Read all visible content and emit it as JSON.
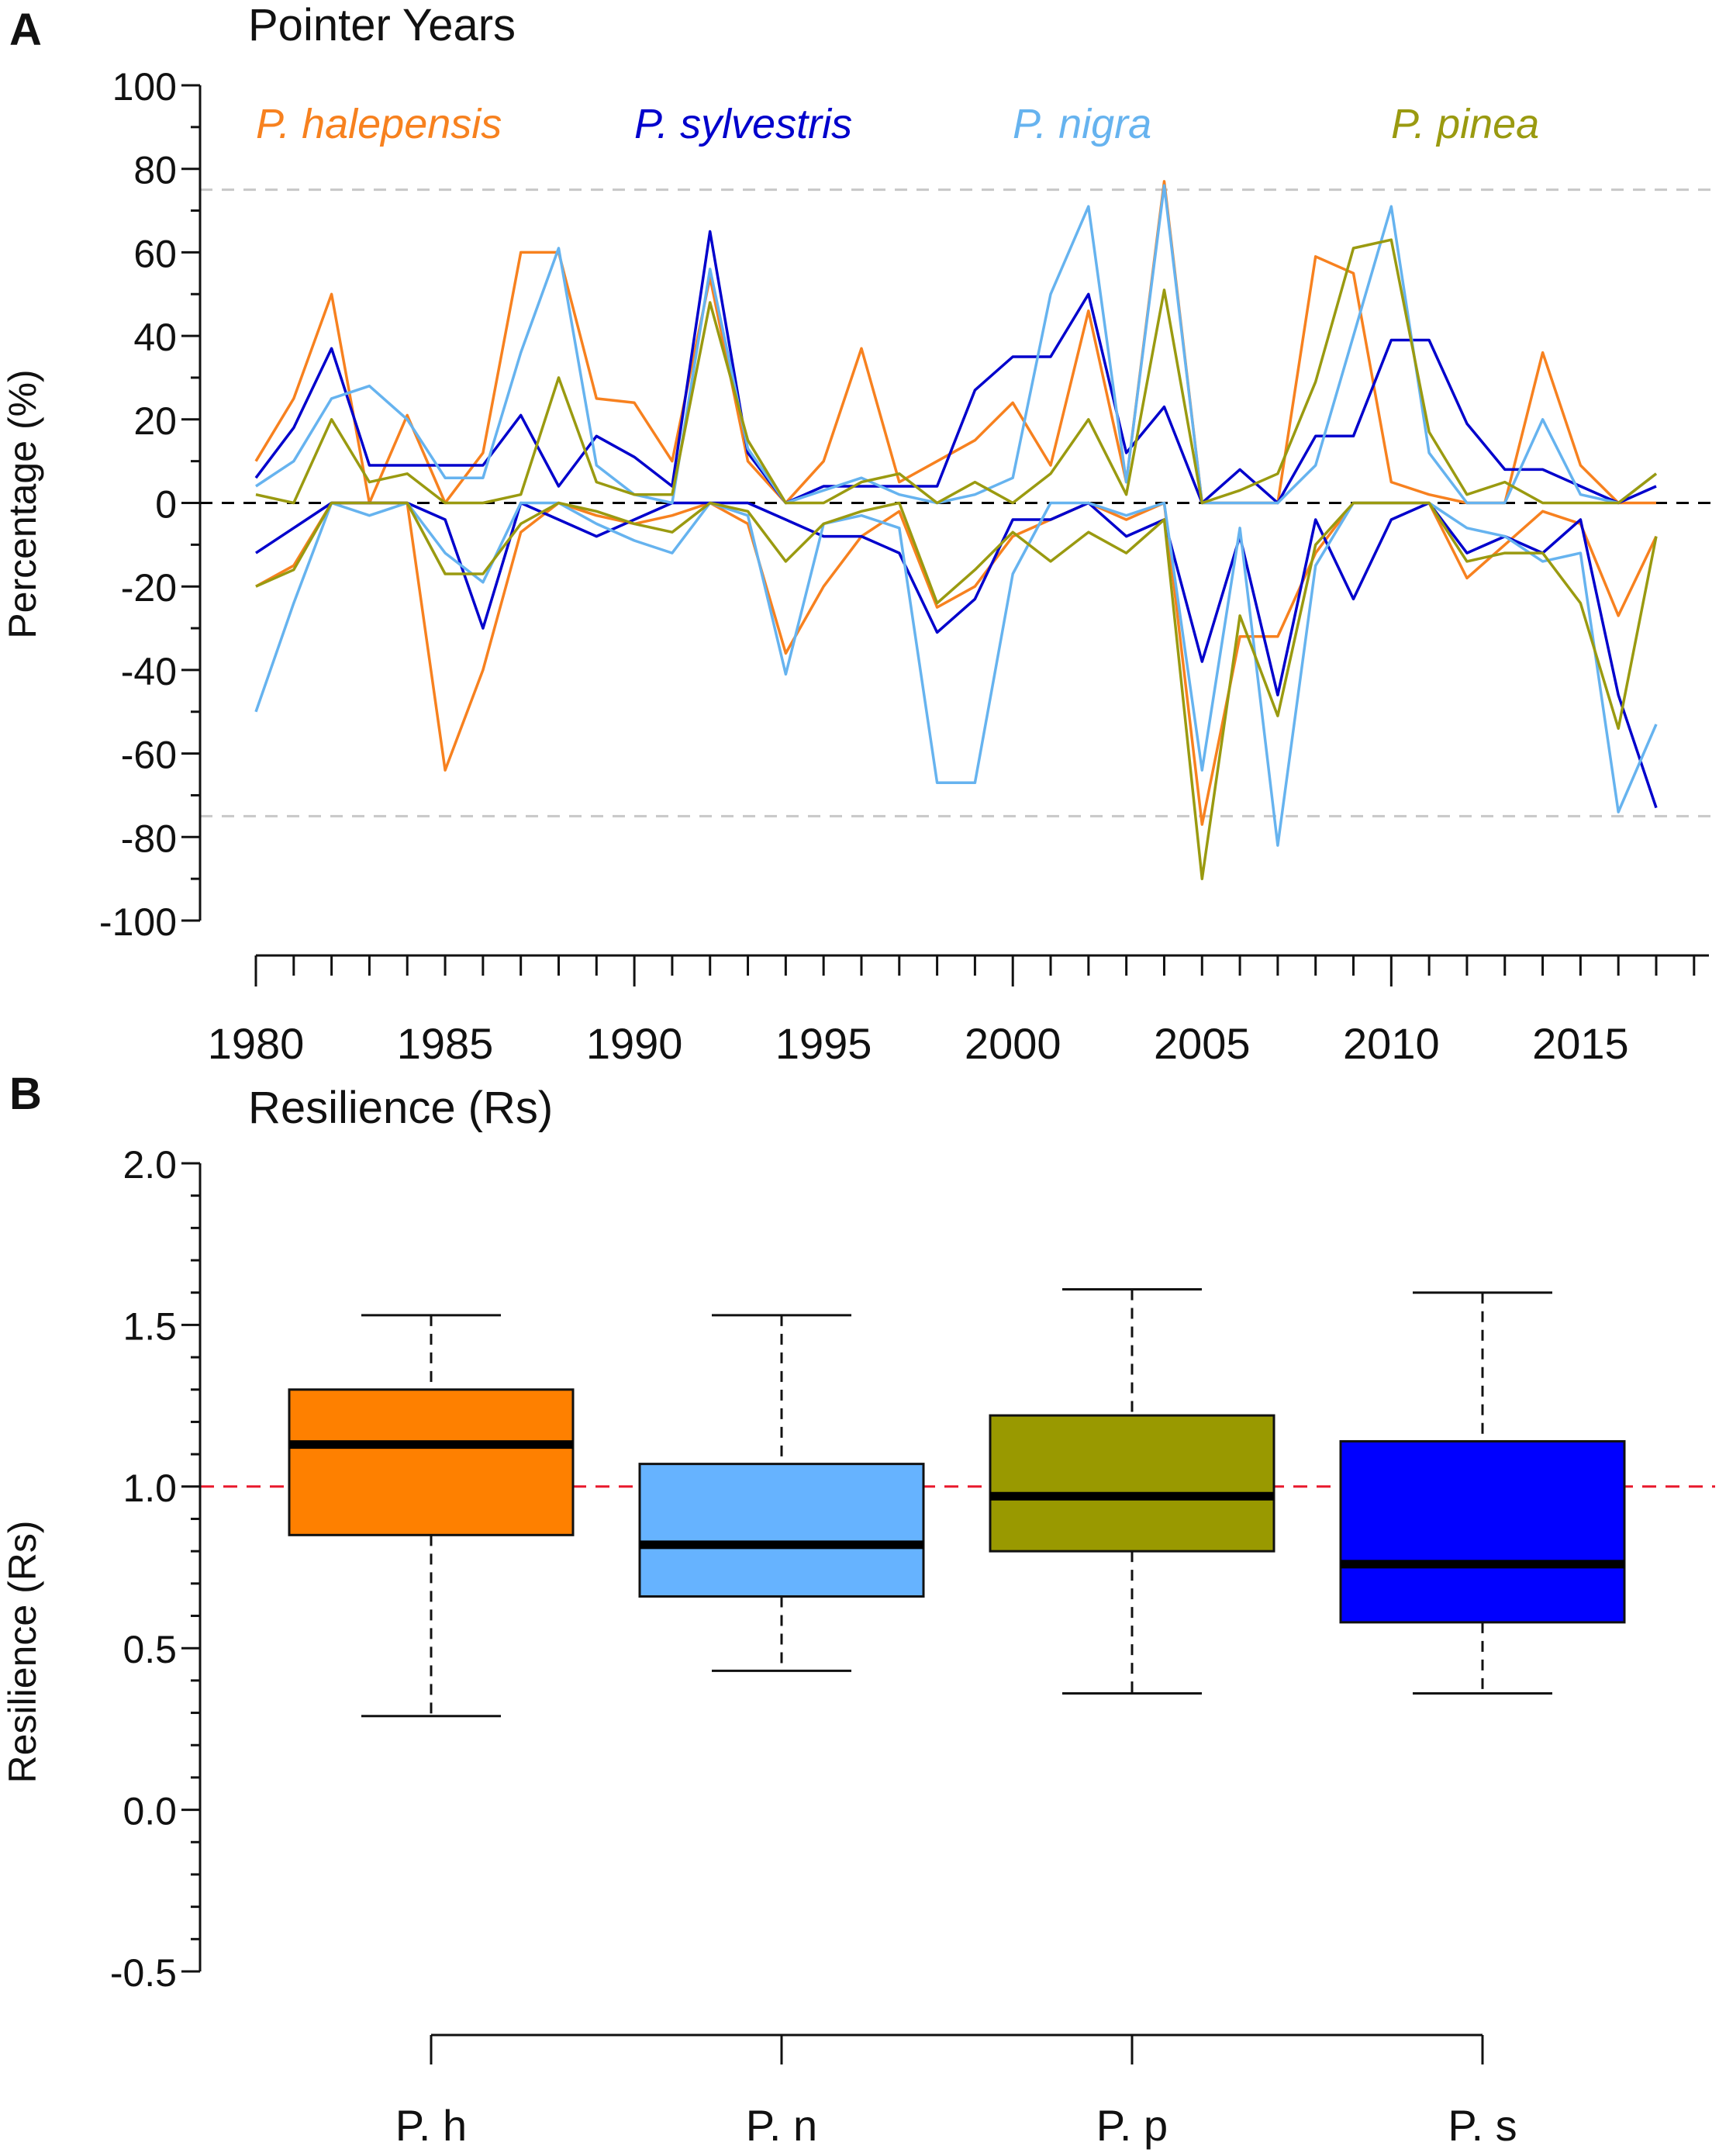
{
  "chart_data": [
    {
      "type": "line",
      "panel_letter": "A",
      "title": "Pointer Years",
      "xlabel": "",
      "ylabel": "Percentage (%)",
      "xlim": [
        1980,
        2017
      ],
      "ylim": [
        -100,
        100
      ],
      "x_ticks": [
        1980,
        1985,
        1990,
        1995,
        2000,
        2005,
        2010,
        2015
      ],
      "y_ticks": [
        100,
        80,
        60,
        40,
        20,
        0,
        -20,
        -40,
        -60,
        -80,
        -100
      ],
      "y_tick_labels": [
        "100",
        "80",
        "60",
        "40",
        "20",
        "0",
        "-20",
        "-40",
        "-60",
        "-80",
        "-100"
      ],
      "reference_lines": [
        {
          "y": 75,
          "style": "dashed",
          "color": "#c8c8c8"
        },
        {
          "y": 0,
          "style": "dashed",
          "color": "#000000"
        },
        {
          "y": -75,
          "style": "dashed",
          "color": "#c8c8c8"
        }
      ],
      "x": [
        1980,
        1981,
        1982,
        1983,
        1984,
        1985,
        1986,
        1987,
        1988,
        1989,
        1990,
        1991,
        1992,
        1993,
        1994,
        1995,
        1996,
        1997,
        1998,
        1999,
        2000,
        2001,
        2002,
        2003,
        2004,
        2005,
        2006,
        2007,
        2008,
        2009,
        2010,
        2011,
        2012,
        2013,
        2014,
        2015,
        2016,
        2017
      ],
      "series": [
        {
          "name": "P. halepensis",
          "label": "P. halepensis",
          "color": "#f7811f",
          "positive": [
            10,
            25,
            50,
            0,
            21,
            0,
            12,
            60,
            60,
            25,
            24,
            10,
            54,
            10,
            0,
            10,
            37,
            5,
            10,
            15,
            24,
            9,
            46,
            5,
            77,
            0,
            0,
            0,
            59,
            55,
            5,
            2,
            0,
            0,
            36,
            9,
            0,
            0
          ],
          "negative": [
            -20,
            -15,
            0,
            0,
            0,
            -64,
            -40,
            -7,
            0,
            -3,
            -5,
            -3,
            0,
            -5,
            -36,
            -20,
            -8,
            -2,
            -25,
            -20,
            -8,
            -4,
            0,
            -4,
            0,
            -77,
            -32,
            -32,
            -12,
            0,
            0,
            0,
            -18,
            -10,
            -2,
            -5,
            -27,
            -8
          ]
        },
        {
          "name": "P. sylvestris",
          "label": "P. sylvestris",
          "color": "#0000cc",
          "positive": [
            6,
            18,
            37,
            9,
            9,
            9,
            9,
            21,
            4,
            16,
            11,
            4,
            65,
            12,
            0,
            4,
            4,
            4,
            4,
            27,
            35,
            35,
            50,
            12,
            23,
            0,
            8,
            0,
            16,
            16,
            39,
            39,
            19,
            8,
            8,
            4,
            0,
            4
          ],
          "negative": [
            -12,
            -6,
            0,
            0,
            0,
            -4,
            -30,
            0,
            -4,
            -8,
            -4,
            0,
            0,
            0,
            -4,
            -8,
            -8,
            -12,
            -31,
            -23,
            -4,
            -4,
            0,
            -8,
            -4,
            -38,
            -8,
            -46,
            -4,
            -23,
            -4,
            0,
            -12,
            -8,
            -12,
            -4,
            -46,
            -73
          ]
        },
        {
          "name": "P. nigra",
          "label": "P. nigra",
          "color": "#66b3ef",
          "positive": [
            4,
            10,
            25,
            28,
            20,
            6,
            6,
            36,
            61,
            9,
            2,
            0,
            56,
            13,
            0,
            3,
            6,
            2,
            0,
            2,
            6,
            50,
            71,
            5,
            76,
            0,
            0,
            0,
            9,
            40,
            71,
            12,
            0,
            0,
            20,
            2,
            0,
            7
          ],
          "negative": [
            -50,
            -24,
            0,
            -3,
            0,
            -12,
            -19,
            0,
            0,
            -5,
            -9,
            -12,
            0,
            -3,
            -41,
            -5,
            -3,
            -6,
            -67,
            -67,
            -17,
            0,
            0,
            -3,
            0,
            -64,
            -6,
            -82,
            -15,
            0,
            0,
            0,
            -6,
            -8,
            -14,
            -12,
            -74,
            -53
          ]
        },
        {
          "name": "P. pinea",
          "label": "P. pinea",
          "color": "#9a9a10",
          "positive": [
            2,
            0,
            20,
            5,
            7,
            0,
            0,
            2,
            30,
            5,
            2,
            2,
            48,
            15,
            0,
            0,
            5,
            7,
            0,
            5,
            0,
            7,
            20,
            2,
            51,
            0,
            3,
            7,
            29,
            61,
            63,
            17,
            2,
            5,
            0,
            0,
            0,
            7
          ],
          "negative": [
            -20,
            -16,
            0,
            0,
            0,
            -17,
            -17,
            -5,
            0,
            -2,
            -5,
            -7,
            0,
            -2,
            -14,
            -5,
            -2,
            0,
            -24,
            -16,
            -7,
            -14,
            -7,
            -12,
            -4,
            -90,
            -27,
            -51,
            -10,
            0,
            0,
            0,
            -14,
            -12,
            -12,
            -24,
            -54,
            -8
          ]
        }
      ]
    },
    {
      "type": "box",
      "panel_letter": "B",
      "title": "Resilience (Rs)",
      "xlabel": "",
      "ylabel": "Resilience (Rs)",
      "ylim": [
        -0.5,
        2.0
      ],
      "y_ticks": [
        2.0,
        1.5,
        1.0,
        0.5,
        0.0,
        -0.5
      ],
      "y_tick_labels": [
        "2.0",
        "1.5",
        "1.0",
        "0.5",
        "0.0",
        "-0.5"
      ],
      "reference_line": {
        "y": 1.0,
        "style": "dashed",
        "color": "#e8192c"
      },
      "categories": [
        "P. h",
        "P. n",
        "P. p",
        "P. s"
      ],
      "boxes": [
        {
          "label": "P. h",
          "color": "#fe8000",
          "whisker_low": 0.29,
          "q1": 0.85,
          "median": 1.13,
          "q3": 1.3,
          "whisker_high": 1.53
        },
        {
          "label": "P. n",
          "color": "#66b3ff",
          "whisker_low": 0.43,
          "q1": 0.66,
          "median": 0.82,
          "q3": 1.07,
          "whisker_high": 1.53
        },
        {
          "label": "P. p",
          "color": "#999900",
          "whisker_low": 0.36,
          "q1": 0.8,
          "median": 0.97,
          "q3": 1.22,
          "whisker_high": 1.61
        },
        {
          "label": "P. s",
          "color": "#0000ff",
          "whisker_low": 0.36,
          "q1": 0.58,
          "median": 0.76,
          "q3": 1.14,
          "whisker_high": 1.6
        }
      ]
    }
  ]
}
